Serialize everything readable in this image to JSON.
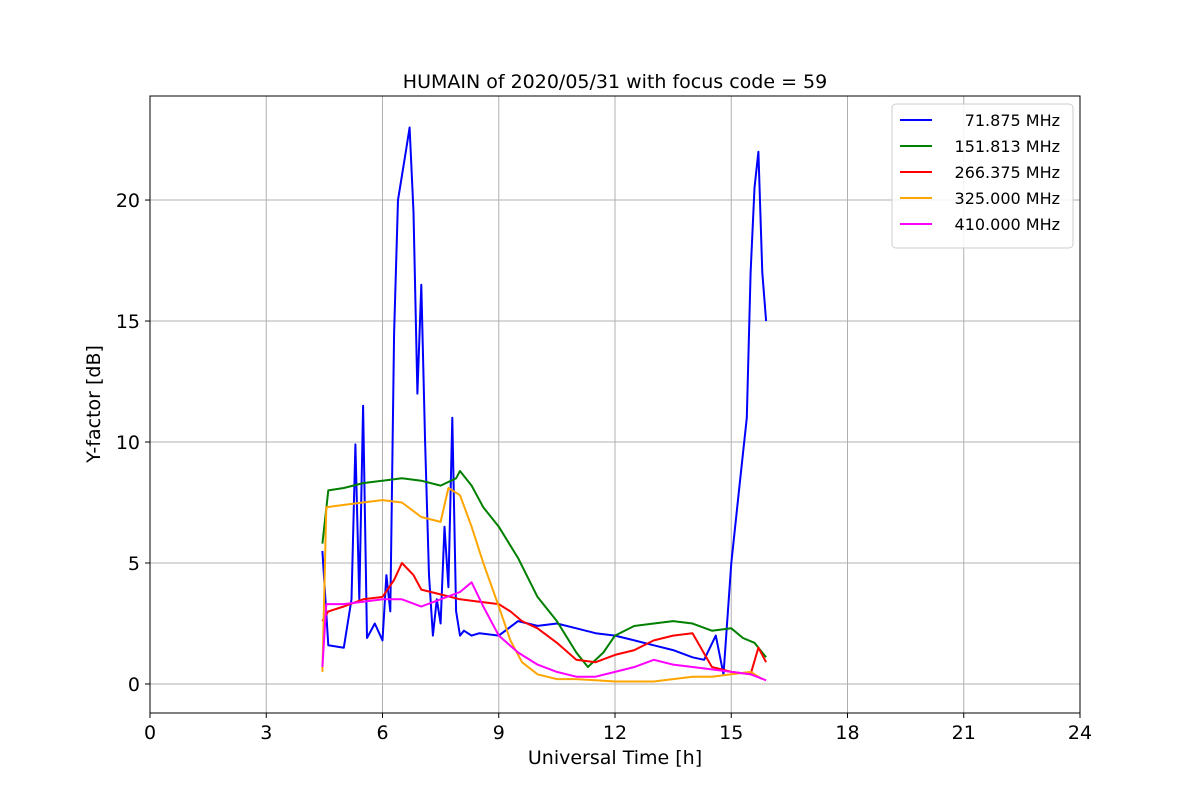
{
  "chart_data": {
    "type": "line",
    "title": "HUMAIN of 2020/05/31 with focus code = 59",
    "xlabel": "Universal Time [h]",
    "ylabel": "Y-factor [dB]",
    "xlim": [
      0,
      24
    ],
    "ylim": [
      -1.2,
      24.3
    ],
    "xticks": [
      0,
      3,
      6,
      9,
      12,
      15,
      18,
      21,
      24
    ],
    "yticks": [
      0,
      5,
      10,
      15,
      20
    ],
    "grid": true,
    "legend_position": "top-right",
    "series": [
      {
        "name": "71.875 MHz",
        "color": "#0000ff",
        "x": [
          4.45,
          4.6,
          5.0,
          5.2,
          5.3,
          5.4,
          5.5,
          5.6,
          5.8,
          6.0,
          6.1,
          6.2,
          6.3,
          6.4,
          6.5,
          6.6,
          6.7,
          6.8,
          6.9,
          7.0,
          7.1,
          7.2,
          7.3,
          7.4,
          7.5,
          7.6,
          7.7,
          7.8,
          7.9,
          8.0,
          8.1,
          8.3,
          8.5,
          9.0,
          9.5,
          10.0,
          10.5,
          11.0,
          11.5,
          12.0,
          12.5,
          13.0,
          13.5,
          14.0,
          14.3,
          14.6,
          14.8,
          15.0,
          15.2,
          15.4,
          15.5,
          15.6,
          15.7,
          15.8,
          15.9
        ],
        "y": [
          5.5,
          1.6,
          1.5,
          3.5,
          9.9,
          3.5,
          11.5,
          1.9,
          2.5,
          1.8,
          4.5,
          3.0,
          14.5,
          20.0,
          21.0,
          22.0,
          23.0,
          19.5,
          12.0,
          16.5,
          10.0,
          4.5,
          2.0,
          3.5,
          2.5,
          6.5,
          4.0,
          11.0,
          3.0,
          2.0,
          2.2,
          2.0,
          2.1,
          2.0,
          2.6,
          2.4,
          2.5,
          2.3,
          2.1,
          2.0,
          1.8,
          1.6,
          1.4,
          1.1,
          1.0,
          2.0,
          0.4,
          5.0,
          8.0,
          11.0,
          17.0,
          20.5,
          22.0,
          17.0,
          15.0
        ]
      },
      {
        "name": "151.813 MHz",
        "color": "#008000",
        "x": [
          4.45,
          4.6,
          5.0,
          5.5,
          6.0,
          6.5,
          7.0,
          7.5,
          7.9,
          8.0,
          8.3,
          8.6,
          9.0,
          9.5,
          10.0,
          10.5,
          11.0,
          11.3,
          11.7,
          12.0,
          12.5,
          13.0,
          13.5,
          14.0,
          14.5,
          15.0,
          15.3,
          15.6,
          15.9
        ],
        "y": [
          5.8,
          8.0,
          8.1,
          8.3,
          8.4,
          8.5,
          8.4,
          8.2,
          8.5,
          8.8,
          8.2,
          7.3,
          6.5,
          5.2,
          3.6,
          2.6,
          1.3,
          0.7,
          1.3,
          2.0,
          2.4,
          2.5,
          2.6,
          2.5,
          2.2,
          2.3,
          1.9,
          1.7,
          1.1
        ]
      },
      {
        "name": "266.375 MHz",
        "color": "#ff0000",
        "x": [
          4.45,
          4.6,
          5.0,
          5.5,
          6.0,
          6.3,
          6.5,
          6.8,
          7.0,
          7.5,
          8.0,
          8.5,
          9.0,
          9.3,
          9.6,
          10.0,
          10.5,
          11.0,
          11.5,
          12.0,
          12.5,
          13.0,
          13.5,
          14.0,
          14.5,
          15.0,
          15.5,
          15.7,
          15.9
        ],
        "y": [
          2.6,
          3.0,
          3.2,
          3.5,
          3.6,
          4.3,
          5.0,
          4.5,
          3.9,
          3.7,
          3.5,
          3.4,
          3.3,
          3.0,
          2.6,
          2.3,
          1.7,
          1.0,
          0.9,
          1.2,
          1.4,
          1.8,
          2.0,
          2.1,
          0.7,
          0.5,
          0.4,
          1.5,
          0.9
        ]
      },
      {
        "name": "325.000 MHz",
        "color": "#ffa500",
        "x": [
          4.45,
          4.55,
          5.0,
          5.5,
          6.0,
          6.5,
          7.0,
          7.5,
          7.7,
          8.0,
          8.3,
          8.6,
          9.0,
          9.3,
          9.6,
          10.0,
          10.5,
          11.0,
          11.5,
          12.0,
          12.5,
          13.0,
          13.5,
          14.0,
          14.5,
          15.0,
          15.5,
          15.8
        ],
        "y": [
          0.5,
          7.3,
          7.4,
          7.5,
          7.6,
          7.5,
          6.9,
          6.7,
          8.1,
          7.8,
          6.5,
          5.0,
          3.2,
          1.8,
          0.9,
          0.4,
          0.2,
          0.2,
          0.15,
          0.1,
          0.1,
          0.1,
          0.2,
          0.3,
          0.3,
          0.4,
          0.5,
          0.2
        ]
      },
      {
        "name": "410.000 MHz",
        "color": "#ff00ff",
        "x": [
          4.45,
          4.55,
          5.0,
          5.5,
          6.0,
          6.5,
          7.0,
          7.5,
          8.0,
          8.3,
          8.6,
          9.0,
          9.5,
          10.0,
          10.5,
          11.0,
          11.5,
          12.0,
          12.5,
          13.0,
          13.5,
          14.0,
          14.5,
          15.0,
          15.5,
          15.9
        ],
        "y": [
          0.7,
          3.3,
          3.3,
          3.4,
          3.5,
          3.5,
          3.2,
          3.5,
          3.8,
          4.2,
          3.2,
          2.0,
          1.3,
          0.8,
          0.5,
          0.3,
          0.3,
          0.5,
          0.7,
          1.0,
          0.8,
          0.7,
          0.6,
          0.5,
          0.4,
          0.15
        ]
      }
    ]
  }
}
